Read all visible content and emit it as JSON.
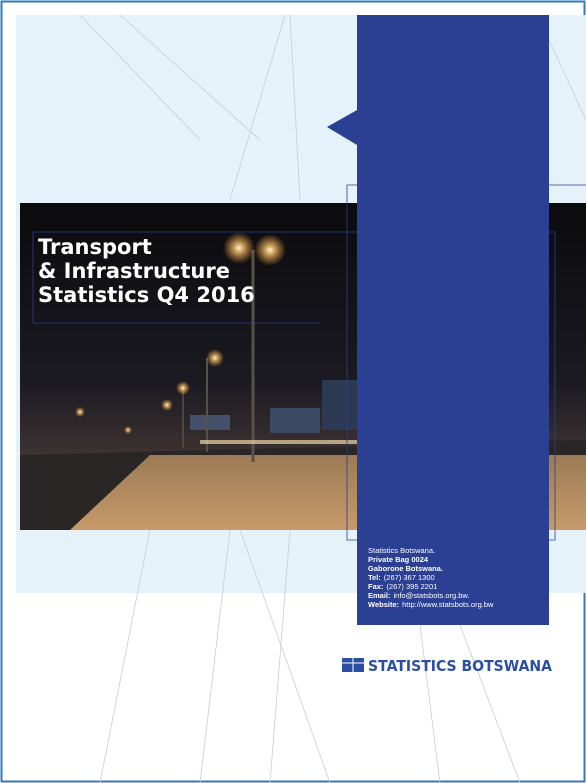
{
  "cover": {
    "title": [
      "Transport",
      "& Infrastructure",
      "Statistics Q4 2016"
    ]
  },
  "contact": {
    "organization": "Statistics Botswana.",
    "address": [
      "Private Bag 0024",
      "Gaborone Botswana."
    ],
    "lines": [
      {
        "label": "Tel:",
        "text": "(267) 367 1300"
      },
      {
        "label": "Fax:",
        "text": "(267) 395 2201"
      },
      {
        "label": "Email:",
        "text": "info@statsbots.org.bw."
      },
      {
        "label": "Website:",
        "text": "http://www.statsbots.org.bw"
      }
    ]
  },
  "logo": {
    "text": "STATISTICS BOTSWANA"
  }
}
